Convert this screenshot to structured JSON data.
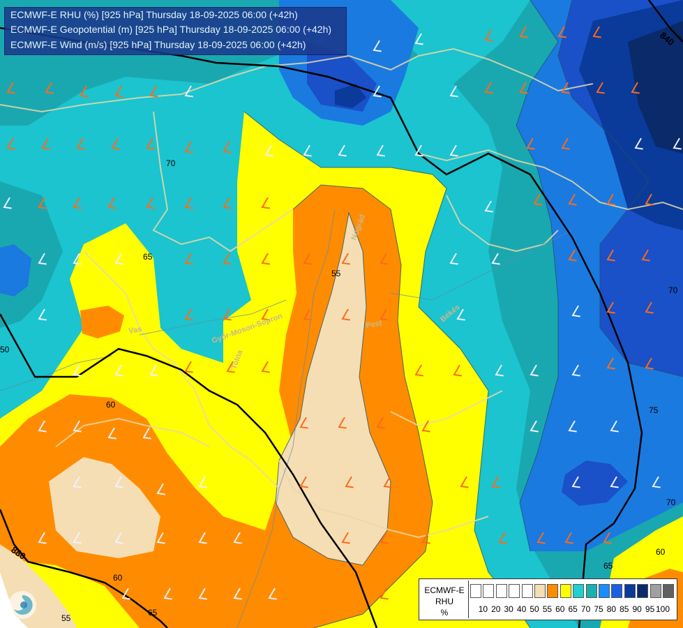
{
  "titles": [
    "ECMWF-E RHU (%) [925 hPa] Thursday 18-09-2025 06:00 (+42h)",
    "ECMWF-E Geopotential (m) [925 hPa] Thursday 18-09-2025 06:00 (+42h)",
    "ECMWF-E Wind (m/s) [925 hPa] Thursday 18-09-2025 06:00 (+42h)"
  ],
  "legend": {
    "name_lines": [
      "ECMWF-E",
      "RHU",
      "%"
    ],
    "ticks": [
      "10",
      "20",
      "30",
      "40",
      "50",
      "55",
      "60",
      "65",
      "70",
      "75",
      "80",
      "85",
      "90",
      "95",
      "100"
    ],
    "colors": [
      "#ffffff",
      "#ffffff",
      "#ffffff",
      "#ffffff",
      "#ffffff",
      "#f5deb3",
      "#ff8c00",
      "#ffff00",
      "#20d0d0",
      "#1ab0b0",
      "#1a8cff",
      "#1a5fe0",
      "#0a3a9a",
      "#0a2a6a",
      "#a0a0a0",
      "#606060"
    ]
  },
  "contour_labels": {
    "rh": [
      "70",
      "65",
      "60",
      "55",
      "60",
      "65",
      "70",
      "75",
      "60",
      "65",
      "70",
      "50",
      "55"
    ],
    "geopotential": [
      "880",
      "840"
    ]
  },
  "place_labels": [
    "Vas",
    "Győr-Moson-Sopron",
    "Tolna",
    "Pest",
    "Nógrád",
    "Békés"
  ],
  "colors": {
    "rh55": "#f5deb3",
    "rh60": "#ff8c00",
    "rh65": "#ffff00",
    "rh70": "#1bc4cf",
    "rh75": "#1aa8b0",
    "rh80": "#1a7ae0",
    "rh85": "#1a50c8",
    "rh90": "#0a3a9a",
    "rh95": "#0a2a6a",
    "border": "#e8d8a8",
    "geo_line": "#000000",
    "wind_orange": "#ff6a1a",
    "wind_white": "#f0f0ff"
  }
}
